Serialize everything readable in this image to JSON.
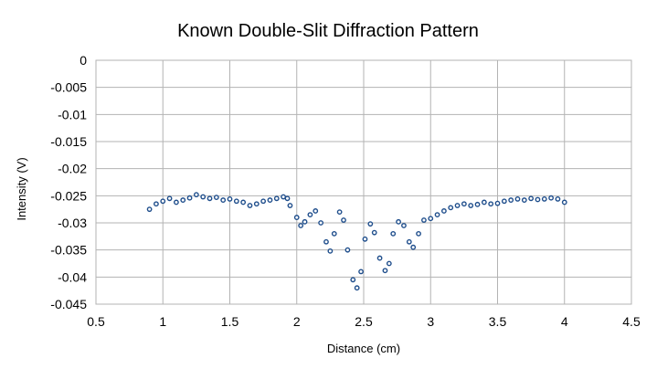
{
  "chart_data": {
    "type": "scatter",
    "title": "Known Double-Slit Diffraction Pattern",
    "xlabel": "Distance  (cm)",
    "ylabel": "Intensity (V)",
    "xlim": [
      0.5,
      4.5
    ],
    "ylim": [
      -0.045,
      0
    ],
    "xticks": [
      0.5,
      1,
      1.5,
      2,
      2.5,
      3,
      3.5,
      4,
      4.5
    ],
    "xtick_labels": [
      "0.5",
      "1",
      "1.5",
      "2",
      "2.5",
      "3",
      "3.5",
      "4",
      "4.5"
    ],
    "yticks": [
      0,
      -0.005,
      -0.01,
      -0.015,
      -0.02,
      -0.025,
      -0.03,
      -0.035,
      -0.04,
      -0.045
    ],
    "ytick_labels": [
      "0",
      "-0.005",
      "-0.01",
      "-0.015",
      "-0.02",
      "-0.025",
      "-0.03",
      "-0.035",
      "-0.04",
      "-0.045"
    ],
    "grid": true,
    "legend": "none",
    "marker_color": "#1f4e8c",
    "series": [
      {
        "points": [
          [
            0.9,
            -0.0275
          ],
          [
            0.95,
            -0.0265
          ],
          [
            1.0,
            -0.026
          ],
          [
            1.05,
            -0.0255
          ],
          [
            1.1,
            -0.0262
          ],
          [
            1.15,
            -0.0258
          ],
          [
            1.2,
            -0.0254
          ],
          [
            1.25,
            -0.0248
          ],
          [
            1.3,
            -0.0252
          ],
          [
            1.35,
            -0.0255
          ],
          [
            1.4,
            -0.0253
          ],
          [
            1.45,
            -0.0258
          ],
          [
            1.5,
            -0.0256
          ],
          [
            1.55,
            -0.026
          ],
          [
            1.6,
            -0.0262
          ],
          [
            1.65,
            -0.0268
          ],
          [
            1.7,
            -0.0265
          ],
          [
            1.75,
            -0.026
          ],
          [
            1.8,
            -0.0258
          ],
          [
            1.85,
            -0.0255
          ],
          [
            1.9,
            -0.0252
          ],
          [
            1.93,
            -0.0255
          ],
          [
            1.95,
            -0.0268
          ],
          [
            2.0,
            -0.029
          ],
          [
            2.03,
            -0.0305
          ],
          [
            2.06,
            -0.0298
          ],
          [
            2.1,
            -0.0285
          ],
          [
            2.14,
            -0.0278
          ],
          [
            2.18,
            -0.03
          ],
          [
            2.22,
            -0.0335
          ],
          [
            2.25,
            -0.0352
          ],
          [
            2.28,
            -0.032
          ],
          [
            2.32,
            -0.028
          ],
          [
            2.35,
            -0.0295
          ],
          [
            2.38,
            -0.035
          ],
          [
            2.42,
            -0.0405
          ],
          [
            2.45,
            -0.042
          ],
          [
            2.48,
            -0.039
          ],
          [
            2.51,
            -0.033
          ],
          [
            2.55,
            -0.0302
          ],
          [
            2.58,
            -0.0318
          ],
          [
            2.62,
            -0.0365
          ],
          [
            2.66,
            -0.0388
          ],
          [
            2.69,
            -0.0375
          ],
          [
            2.72,
            -0.032
          ],
          [
            2.76,
            -0.0298
          ],
          [
            2.8,
            -0.0305
          ],
          [
            2.84,
            -0.0335
          ],
          [
            2.87,
            -0.0345
          ],
          [
            2.91,
            -0.032
          ],
          [
            2.95,
            -0.0295
          ],
          [
            3.0,
            -0.0292
          ],
          [
            3.05,
            -0.0285
          ],
          [
            3.1,
            -0.0278
          ],
          [
            3.15,
            -0.0272
          ],
          [
            3.2,
            -0.0268
          ],
          [
            3.25,
            -0.0265
          ],
          [
            3.3,
            -0.0268
          ],
          [
            3.35,
            -0.0266
          ],
          [
            3.4,
            -0.0262
          ],
          [
            3.45,
            -0.0265
          ],
          [
            3.5,
            -0.0264
          ],
          [
            3.55,
            -0.026
          ],
          [
            3.6,
            -0.0258
          ],
          [
            3.65,
            -0.0256
          ],
          [
            3.7,
            -0.0258
          ],
          [
            3.75,
            -0.0255
          ],
          [
            3.8,
            -0.0257
          ],
          [
            3.85,
            -0.0256
          ],
          [
            3.9,
            -0.0254
          ],
          [
            3.95,
            -0.0256
          ],
          [
            4.0,
            -0.0262
          ]
        ]
      }
    ]
  }
}
